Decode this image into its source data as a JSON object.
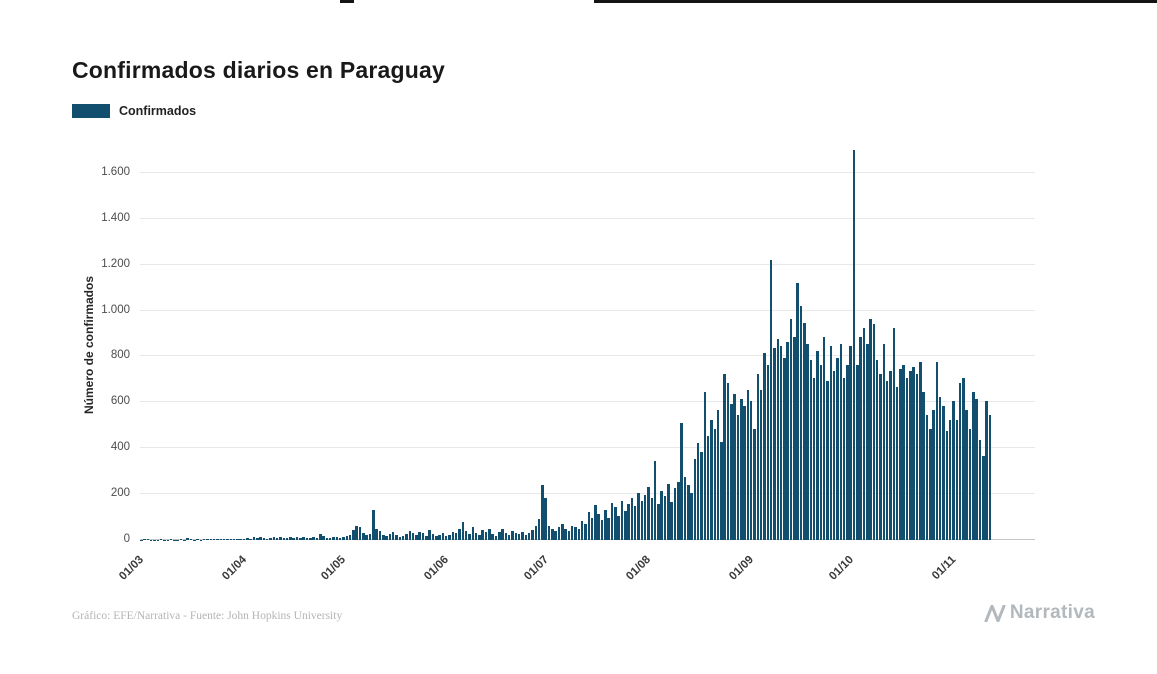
{
  "title": "Confirmados diarios en Paraguay",
  "legend": {
    "label": "Confirmados",
    "color": "#124f6e"
  },
  "footer": {
    "credit": "Gráfico: EFE/Narrativa - Fuente: John Hopkins University",
    "brand": "Narrativa"
  },
  "chart_data": {
    "type": "bar",
    "title": "Confirmados diarios en Paraguay",
    "xlabel": "",
    "ylabel": "Número de confirmados",
    "legend": [
      "Confirmados"
    ],
    "legend_position": "top-left",
    "grid": true,
    "bar_color": "#124f6e",
    "ylim": [
      0,
      1700
    ],
    "yticks": [
      0,
      200,
      400,
      600,
      800,
      1000,
      1200,
      1400,
      1600
    ],
    "ytick_labels": [
      "0",
      "200",
      "400",
      "600",
      "800",
      "1.000",
      "1.200",
      "1.400",
      "1.600"
    ],
    "x_tick_labels": [
      "01/03",
      "01/04",
      "01/05",
      "01/06",
      "01/07",
      "01/08",
      "01/09",
      "01/10",
      "01/11"
    ],
    "x_tick_indices": [
      0,
      31,
      61,
      92,
      122,
      153,
      184,
      214,
      245
    ],
    "values": [
      1,
      3,
      6,
      1,
      2,
      1,
      3,
      1,
      2,
      4,
      2,
      1,
      3,
      2,
      10,
      3,
      2,
      4,
      2,
      3,
      6,
      4,
      3,
      5,
      3,
      4,
      6,
      4,
      3,
      5,
      4,
      6,
      9,
      5,
      11,
      7,
      13,
      8,
      6,
      10,
      12,
      7,
      14,
      8,
      10,
      13,
      9,
      11,
      8,
      15,
      10,
      7,
      12,
      9,
      28,
      16,
      10,
      8,
      11,
      14,
      9,
      12,
      16,
      24,
      42,
      62,
      55,
      32,
      20,
      26,
      133,
      46,
      38,
      24,
      16,
      28,
      36,
      22,
      14,
      19,
      26,
      40,
      31,
      23,
      36,
      29,
      19,
      43,
      26,
      16,
      21,
      31,
      17,
      24,
      36,
      30,
      46,
      78,
      38,
      26,
      56,
      32,
      22,
      44,
      36,
      48,
      26,
      19,
      33,
      46,
      29,
      23,
      39,
      31,
      26,
      36,
      21,
      29,
      42,
      60,
      92,
      238,
      182,
      62,
      48,
      40,
      56,
      70,
      50,
      38,
      62,
      55,
      48,
      82,
      68,
      122,
      95,
      152,
      112,
      88,
      132,
      98,
      162,
      142,
      105,
      172,
      128,
      158,
      185,
      148,
      205,
      168,
      195,
      232,
      185,
      345,
      158,
      212,
      192,
      242,
      165,
      225,
      255,
      508,
      275,
      238,
      205,
      355,
      425,
      385,
      645,
      455,
      525,
      485,
      565,
      428,
      725,
      685,
      595,
      635,
      545,
      615,
      585,
      655,
      605,
      485,
      725,
      655,
      815,
      765,
      1220,
      835,
      875,
      845,
      795,
      865,
      962,
      885,
      1122,
      1022,
      945,
      855,
      785,
      705,
      825,
      765,
      885,
      695,
      845,
      735,
      795,
      855,
      705,
      765,
      845,
      1700,
      765,
      885,
      925,
      855,
      962,
      940,
      785,
      725,
      855,
      695,
      735,
      922,
      665,
      745,
      765,
      705,
      735,
      755,
      725,
      775,
      645,
      545,
      485,
      565,
      775,
      625,
      585,
      475,
      525,
      605,
      525,
      685,
      705,
      565,
      485,
      645,
      615,
      435,
      365,
      605,
      545
    ]
  }
}
